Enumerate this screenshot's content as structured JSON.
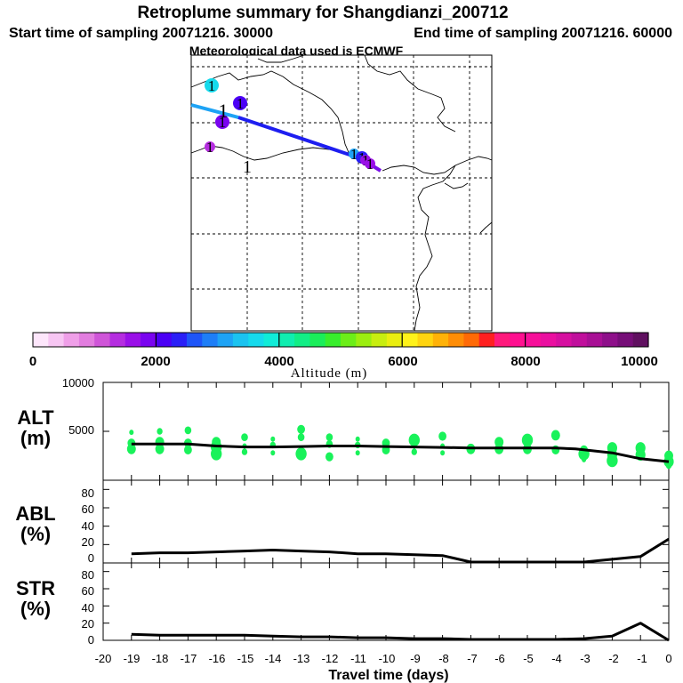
{
  "titles": {
    "main": "Retroplume summary for Shangdianzi_200712",
    "start": "Start time of sampling 20071216. 30000",
    "end": "End time of sampling 20071216. 60000",
    "met": "Meteorological data used is ECMWF"
  },
  "map": {
    "markers": [
      {
        "alt": 3600,
        "label": "1"
      },
      {
        "alt": 2200,
        "label": "1"
      },
      {
        "alt": 1800,
        "label": "1"
      },
      {
        "alt": 1400,
        "label": "1"
      },
      {
        "alt": 3000,
        "label": "1"
      },
      {
        "alt": 2400,
        "label": "1"
      },
      {
        "alt": 1600,
        "label": "1"
      },
      {
        "alt": 1500,
        "label": "1"
      }
    ],
    "free_labels": [
      "1",
      "1"
    ]
  },
  "colorbar": {
    "ticks": [
      "0",
      "2000",
      "4000",
      "6000",
      "8000",
      "10000"
    ],
    "label": "Altitude (m)",
    "colors": [
      "#fde6fb",
      "#f7c6f3",
      "#ef9fe8",
      "#e27ddf",
      "#cf55d8",
      "#b52de0",
      "#9a10e8",
      "#7a04f0",
      "#4b00f5",
      "#2a1ff7",
      "#1e55f8",
      "#1e7ef7",
      "#1ea3f5",
      "#1bc3f0",
      "#16daec",
      "#10ecd8",
      "#10eeb0",
      "#12ee86",
      "#1aee5a",
      "#38ee2c",
      "#6cee18",
      "#9cee10",
      "#c8ee10",
      "#eaee10",
      "#fff21a",
      "#ffd410",
      "#ffb208",
      "#ff8d06",
      "#ff6a06",
      "#ff2020",
      "#ff1a7c",
      "#ff1090",
      "#f7109a",
      "#ea10a0",
      "#d610a0",
      "#c0109c",
      "#a81095",
      "#8e108a",
      "#760e78",
      "#601060"
    ]
  },
  "chart_data": [
    {
      "type": "scatter",
      "name": "ALT",
      "ylabel_line1": "ALT",
      "ylabel_line2": "(m)",
      "xlim": [
        -20,
        0
      ],
      "ylim": [
        0,
        10000
      ],
      "yticks": [
        "5000",
        "10000"
      ],
      "line": {
        "x": [
          -19,
          -17,
          -16,
          -15,
          -14,
          -13,
          -12,
          -11,
          -10,
          -9,
          -8,
          -7,
          -6,
          -5,
          -4,
          -3.3,
          -2,
          -1,
          0
        ],
        "y": [
          3700,
          3700,
          3500,
          3400,
          3400,
          3450,
          3500,
          3500,
          3450,
          3400,
          3350,
          3300,
          3300,
          3300,
          3300,
          3200,
          2800,
          2200,
          1900
        ]
      },
      "points": [
        {
          "x": -19,
          "y": 3200
        },
        {
          "x": -19,
          "y": 3800
        },
        {
          "x": -19,
          "y": 4900
        },
        {
          "x": -18,
          "y": 3200
        },
        {
          "x": -18,
          "y": 3900
        },
        {
          "x": -18,
          "y": 5000
        },
        {
          "x": -17,
          "y": 3100
        },
        {
          "x": -17,
          "y": 3800
        },
        {
          "x": -17,
          "y": 5100
        },
        {
          "x": -16,
          "y": 2700
        },
        {
          "x": -16,
          "y": 3400
        },
        {
          "x": -16,
          "y": 3900
        },
        {
          "x": -15,
          "y": 2900
        },
        {
          "x": -15,
          "y": 3500
        },
        {
          "x": -15,
          "y": 4400
        },
        {
          "x": -14,
          "y": 2800
        },
        {
          "x": -14,
          "y": 3600
        },
        {
          "x": -14,
          "y": 4200
        },
        {
          "x": -13,
          "y": 2700
        },
        {
          "x": -13,
          "y": 4400
        },
        {
          "x": -13,
          "y": 5200
        },
        {
          "x": -12,
          "y": 2400
        },
        {
          "x": -12,
          "y": 3700
        },
        {
          "x": -12,
          "y": 4400
        },
        {
          "x": -11,
          "y": 2800
        },
        {
          "x": -11,
          "y": 3600
        },
        {
          "x": -11,
          "y": 4200
        },
        {
          "x": -10,
          "y": 3100
        },
        {
          "x": -10,
          "y": 3800
        },
        {
          "x": -9,
          "y": 2900
        },
        {
          "x": -9,
          "y": 3500
        },
        {
          "x": -9,
          "y": 4100
        },
        {
          "x": -8,
          "y": 2800
        },
        {
          "x": -8,
          "y": 3500
        },
        {
          "x": -8,
          "y": 4500
        },
        {
          "x": -7,
          "y": 3200
        },
        {
          "x": -6,
          "y": 3200
        },
        {
          "x": -6,
          "y": 3900
        },
        {
          "x": -5,
          "y": 3200
        },
        {
          "x": -5,
          "y": 4100
        },
        {
          "x": -4,
          "y": 3100
        },
        {
          "x": -4,
          "y": 4600
        },
        {
          "x": -3,
          "y": 2100
        },
        {
          "x": -3,
          "y": 2700
        },
        {
          "x": -3,
          "y": 3100
        },
        {
          "x": -2,
          "y": 2000
        },
        {
          "x": -2,
          "y": 2600
        },
        {
          "x": -2,
          "y": 3300
        },
        {
          "x": -1,
          "y": 2600
        },
        {
          "x": -1,
          "y": 3300
        },
        {
          "x": 0,
          "y": 1500
        },
        {
          "x": 0,
          "y": 1900
        },
        {
          "x": 0,
          "y": 2500
        }
      ]
    },
    {
      "type": "line",
      "name": "ABL",
      "ylabel_line1": "ABL",
      "ylabel_line2": "(%)",
      "xlim": [
        -20,
        0
      ],
      "ylim": [
        0,
        90
      ],
      "yticks": [
        "0",
        "20",
        "40",
        "60",
        "80"
      ],
      "x": [
        -19,
        -18,
        -17,
        -16,
        -15,
        -14,
        -13,
        -12,
        -11,
        -10,
        -9,
        -8,
        -7,
        -6,
        -5,
        -4,
        -3,
        -2,
        -1,
        0
      ],
      "y": [
        10,
        11,
        11,
        12,
        13,
        14,
        13,
        12,
        10,
        10,
        9,
        8,
        1,
        1,
        1,
        1,
        1,
        4,
        7,
        26
      ]
    },
    {
      "type": "line",
      "name": "STR",
      "ylabel_line1": "STR",
      "ylabel_line2": "(%)",
      "xlim": [
        -20,
        0
      ],
      "ylim": [
        0,
        90
      ],
      "yticks": [
        "0",
        "20",
        "40",
        "60",
        "80"
      ],
      "x": [
        -19,
        -18,
        -17,
        -16,
        -15,
        -14,
        -13,
        -12,
        -11,
        -10,
        -9,
        -8,
        -7,
        -6,
        -5,
        -4,
        -3,
        -2,
        -1,
        0
      ],
      "y": [
        7,
        6,
        6,
        6,
        6,
        5,
        4,
        4,
        3,
        3,
        2,
        2,
        1,
        1,
        1,
        1,
        2,
        5,
        20,
        0
      ]
    }
  ],
  "xaxis": {
    "ticks": [
      "-20",
      "-19",
      "-18",
      "-17",
      "-16",
      "-15",
      "-14",
      "-13",
      "-12",
      "-11",
      "-10",
      "-9",
      "-8",
      "-7",
      "-6",
      "-5",
      "-4",
      "-3",
      "-2",
      "-1",
      "0"
    ],
    "label": "Travel time (days)"
  }
}
